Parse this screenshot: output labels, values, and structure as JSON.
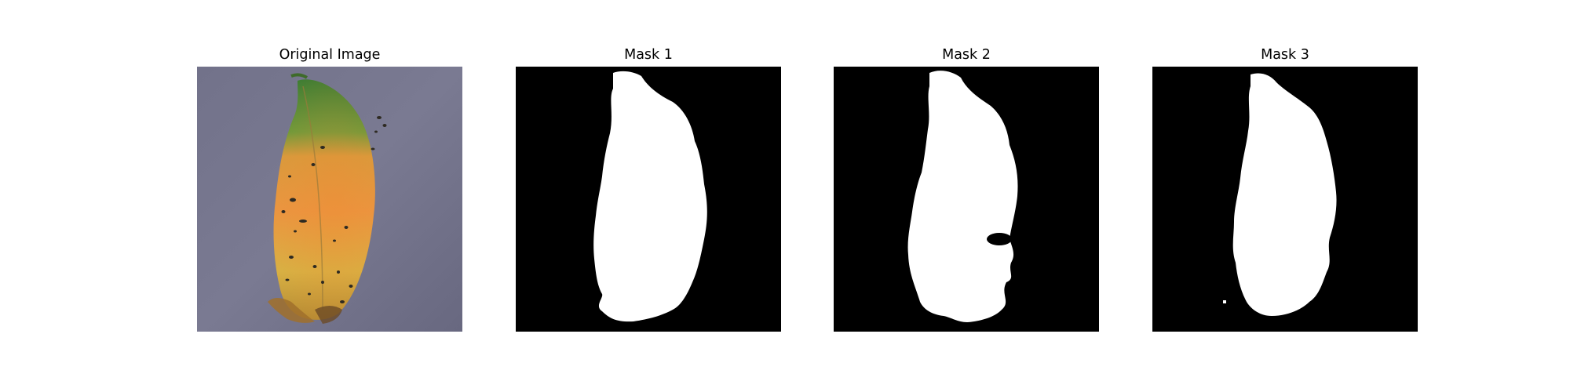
{
  "panels": [
    {
      "title": "Original Image",
      "content": "photo of a yellow-orange leaf with green tip and dark spots on grey background"
    },
    {
      "title": "Mask 1",
      "content": "binary segmentation mask"
    },
    {
      "title": "Mask 2",
      "content": "binary segmentation mask"
    },
    {
      "title": "Mask 3",
      "content": "binary segmentation mask"
    }
  ],
  "colors": {
    "background": "#ffffff",
    "mask_background": "#000000",
    "mask_foreground": "#ffffff",
    "photo_background": "#6e6e86",
    "leaf_green": "#4f8a3a",
    "leaf_orange": "#e69a3a",
    "leaf_yellow": "#d9b347",
    "spot": "#2e2a22"
  }
}
